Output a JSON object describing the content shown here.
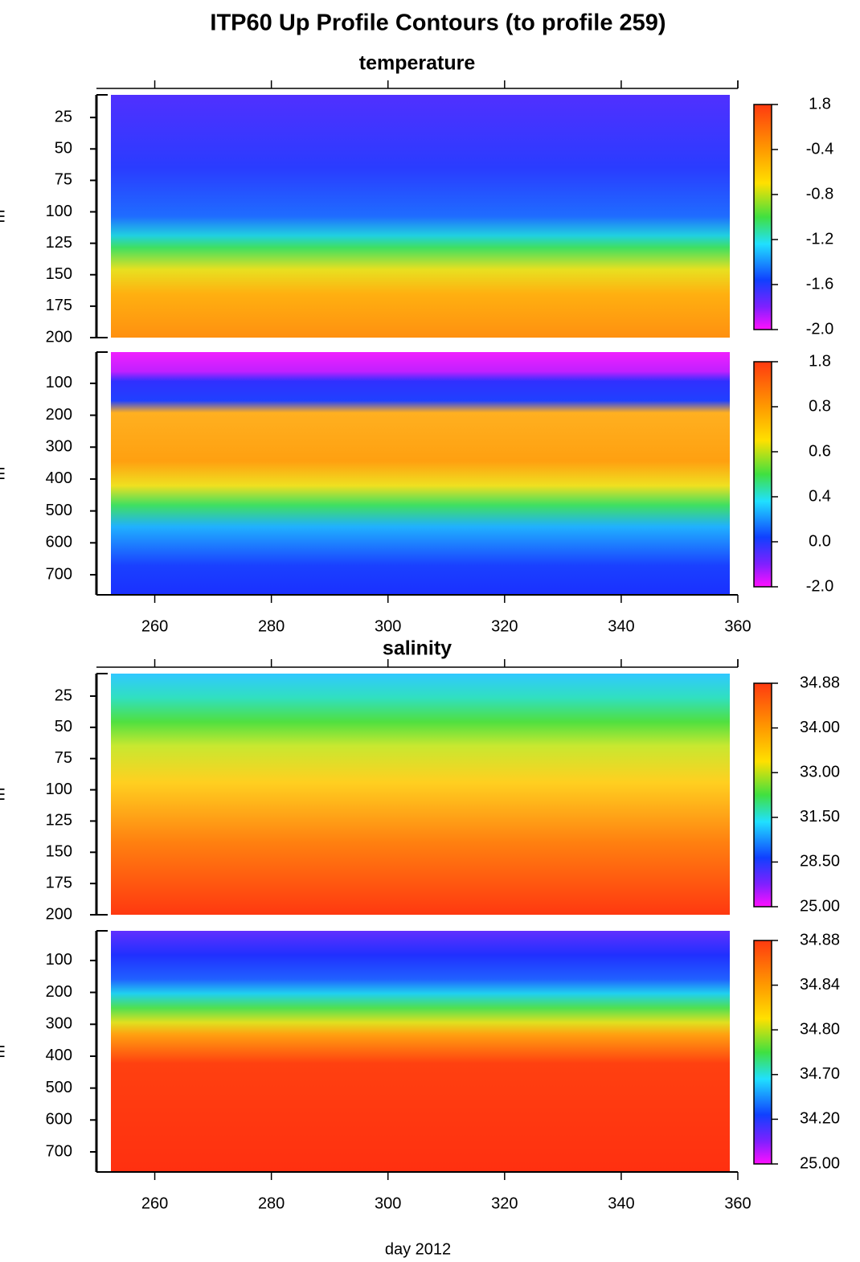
{
  "chart_data": {
    "type": "contour",
    "title": "ITP60 Up Profile Contours (to profile 259)",
    "x_label": "day 2012",
    "y_label": "m",
    "invert_y": true,
    "xlim": [
      250,
      360
    ],
    "xticks": [
      260,
      280,
      300,
      320,
      340,
      360
    ],
    "sections": [
      {
        "title": "temperature",
        "panels": [
          {
            "ylim": [
              7,
              200
            ],
            "yticks": [
              25,
              50,
              75,
              100,
              125,
              150,
              175,
              200
            ],
            "colorbar_labels": [
              "1.8",
              "-0.4",
              "-0.8",
              "-1.2",
              "-1.6",
              "-2.0"
            ]
          },
          {
            "ylim": [
              2,
              763
            ],
            "yticks": [
              100,
              200,
              300,
              400,
              500,
              600,
              700
            ],
            "colorbar_labels": [
              "1.8",
              "0.8",
              "0.6",
              "0.4",
              "0.0",
              "-2.0"
            ]
          }
        ]
      },
      {
        "title": "salinity",
        "panels": [
          {
            "ylim": [
              7,
              200
            ],
            "yticks": [
              25,
              50,
              75,
              100,
              125,
              150,
              175,
              200
            ],
            "colorbar_labels": [
              "34.88",
              "34.00",
              "33.00",
              "31.50",
              "28.50",
              "25.00"
            ]
          },
          {
            "ylim": [
              7,
              763
            ],
            "yticks": [
              100,
              200,
              300,
              400,
              500,
              600,
              700
            ],
            "colorbar_labels": [
              "34.88",
              "34.84",
              "34.80",
              "34.70",
              "34.20",
              "25.00"
            ]
          }
        ]
      }
    ]
  }
}
